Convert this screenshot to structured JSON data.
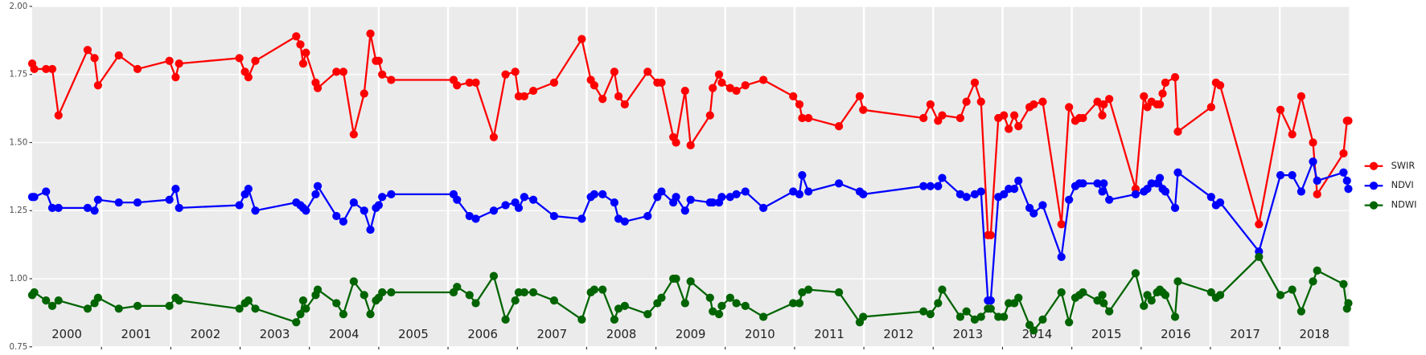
{
  "chart_data": {
    "type": "line",
    "x": [
      2000.0,
      2000.03,
      2000.2,
      2000.29,
      2000.38,
      2000.8,
      2000.9,
      2000.95,
      2001.25,
      2001.52,
      2001.98,
      2002.07,
      2002.12,
      2002.99,
      2003.07,
      2003.12,
      2003.22,
      2003.81,
      2003.87,
      2003.91,
      2003.95,
      2004.09,
      2004.12,
      2004.39,
      2004.49,
      2004.64,
      2004.79,
      2004.88,
      2004.96,
      2005.0,
      2005.05,
      2005.18,
      2006.08,
      2006.13,
      2006.31,
      2006.4,
      2006.66,
      2006.83,
      2006.97,
      2007.02,
      2007.1,
      2007.23,
      2007.53,
      2007.93,
      2008.06,
      2008.11,
      2008.23,
      2008.4,
      2008.46,
      2008.55,
      2008.88,
      2009.02,
      2009.08,
      2009.25,
      2009.29,
      2009.42,
      2009.5,
      2009.78,
      2009.82,
      2009.91,
      2009.95,
      2010.07,
      2010.16,
      2010.29,
      2010.55,
      2010.98,
      2011.07,
      2011.11,
      2011.2,
      2011.64,
      2011.94,
      2011.99,
      2012.86,
      2012.96,
      2013.07,
      2013.13,
      2013.39,
      2013.48,
      2013.6,
      2013.69,
      2013.79,
      2013.83,
      2013.94,
      2014.02,
      2014.09,
      2014.17,
      2014.23,
      2014.39,
      2014.45,
      2014.58,
      2014.85,
      2014.96,
      2015.05,
      2015.11,
      2015.16,
      2015.37,
      2015.44,
      2015.46,
      2015.54,
      2015.92,
      2016.04,
      2016.09,
      2016.15,
      2016.23,
      2016.27,
      2016.31,
      2016.35,
      2016.49,
      2016.53,
      2017.01,
      2017.08,
      2017.14,
      2017.7,
      2018.01,
      2018.18,
      2018.31,
      2018.48,
      2018.54,
      2018.92,
      2018.97,
      2018.99
    ],
    "series": [
      {
        "name": "SWIR",
        "color": "#ff0000",
        "values": [
          1.79,
          1.77,
          1.77,
          1.77,
          1.6,
          1.84,
          1.81,
          1.71,
          1.82,
          1.77,
          1.8,
          1.74,
          1.79,
          1.81,
          1.76,
          1.74,
          1.8,
          1.89,
          1.86,
          1.79,
          1.83,
          1.72,
          1.7,
          1.76,
          1.76,
          1.53,
          1.68,
          1.9,
          1.8,
          1.8,
          1.75,
          1.73,
          1.73,
          1.71,
          1.72,
          1.72,
          1.52,
          1.75,
          1.76,
          1.67,
          1.67,
          1.69,
          1.72,
          1.88,
          1.73,
          1.71,
          1.66,
          1.76,
          1.67,
          1.64,
          1.76,
          1.72,
          1.72,
          1.52,
          1.5,
          1.69,
          1.49,
          1.6,
          1.7,
          1.75,
          1.72,
          1.7,
          1.69,
          1.71,
          1.73,
          1.67,
          1.64,
          1.59,
          1.59,
          1.56,
          1.67,
          1.62,
          1.59,
          1.64,
          1.58,
          1.6,
          1.59,
          1.65,
          1.72,
          1.65,
          1.16,
          1.16,
          1.59,
          1.6,
          1.55,
          1.6,
          1.56,
          1.63,
          1.64,
          1.65,
          1.2,
          1.63,
          1.58,
          1.59,
          1.59,
          1.65,
          1.6,
          1.64,
          1.66,
          1.33,
          1.67,
          1.63,
          1.65,
          1.64,
          1.64,
          1.68,
          1.72,
          1.74,
          1.54,
          1.63,
          1.72,
          1.71,
          1.2,
          1.62,
          1.53,
          1.67,
          1.5,
          1.31,
          1.46,
          1.58,
          1.58
        ]
      },
      {
        "name": "NDVI",
        "color": "#0000ff",
        "values": [
          1.3,
          1.3,
          1.32,
          1.26,
          1.26,
          1.26,
          1.25,
          1.29,
          1.28,
          1.28,
          1.29,
          1.33,
          1.26,
          1.27,
          1.31,
          1.33,
          1.25,
          1.28,
          1.27,
          1.26,
          1.25,
          1.31,
          1.34,
          1.23,
          1.21,
          1.28,
          1.25,
          1.18,
          1.26,
          1.27,
          1.3,
          1.31,
          1.31,
          1.29,
          1.23,
          1.22,
          1.25,
          1.27,
          1.28,
          1.26,
          1.3,
          1.29,
          1.23,
          1.22,
          1.3,
          1.31,
          1.31,
          1.28,
          1.22,
          1.21,
          1.23,
          1.3,
          1.32,
          1.28,
          1.3,
          1.25,
          1.29,
          1.28,
          1.28,
          1.28,
          1.3,
          1.3,
          1.31,
          1.32,
          1.26,
          1.32,
          1.31,
          1.38,
          1.32,
          1.35,
          1.32,
          1.31,
          1.34,
          1.34,
          1.34,
          1.37,
          1.31,
          1.3,
          1.31,
          1.32,
          0.92,
          0.92,
          1.3,
          1.31,
          1.33,
          1.33,
          1.36,
          1.26,
          1.24,
          1.27,
          1.08,
          1.29,
          1.34,
          1.35,
          1.35,
          1.35,
          1.32,
          1.35,
          1.29,
          1.31,
          1.32,
          1.33,
          1.35,
          1.35,
          1.37,
          1.33,
          1.32,
          1.26,
          1.39,
          1.3,
          1.27,
          1.28,
          1.1,
          1.38,
          1.38,
          1.32,
          1.43,
          1.36,
          1.39,
          1.36,
          1.33
        ]
      },
      {
        "name": "NDWI",
        "color": "#006400",
        "values": [
          0.94,
          0.95,
          0.92,
          0.9,
          0.92,
          0.89,
          0.91,
          0.93,
          0.89,
          0.9,
          0.9,
          0.93,
          0.92,
          0.89,
          0.91,
          0.92,
          0.89,
          0.84,
          0.87,
          0.92,
          0.89,
          0.94,
          0.96,
          0.91,
          0.87,
          0.99,
          0.94,
          0.87,
          0.92,
          0.93,
          0.95,
          0.95,
          0.95,
          0.97,
          0.94,
          0.91,
          1.01,
          0.85,
          0.92,
          0.95,
          0.95,
          0.95,
          0.92,
          0.85,
          0.95,
          0.96,
          0.96,
          0.85,
          0.89,
          0.9,
          0.87,
          0.91,
          0.93,
          1.0,
          1.0,
          0.91,
          0.99,
          0.93,
          0.88,
          0.87,
          0.9,
          0.93,
          0.91,
          0.9,
          0.86,
          0.91,
          0.91,
          0.95,
          0.96,
          0.95,
          0.84,
          0.86,
          0.88,
          0.87,
          0.91,
          0.96,
          0.86,
          0.88,
          0.85,
          0.86,
          0.89,
          0.89,
          0.86,
          0.86,
          0.91,
          0.91,
          0.93,
          0.83,
          0.81,
          0.85,
          0.95,
          0.84,
          0.93,
          0.94,
          0.95,
          0.92,
          0.94,
          0.91,
          0.88,
          1.02,
          0.9,
          0.94,
          0.92,
          0.95,
          0.96,
          0.95,
          0.94,
          0.86,
          0.99,
          0.95,
          0.93,
          0.94,
          1.08,
          0.94,
          0.96,
          0.88,
          0.99,
          1.03,
          0.98,
          0.89,
          0.91
        ]
      }
    ],
    "xlim": [
      2000,
      2019
    ],
    "xticks": [
      {
        "value": 2000.5,
        "label": "2000"
      },
      {
        "value": 2001.5,
        "label": "2001"
      },
      {
        "value": 2002.5,
        "label": "2002"
      },
      {
        "value": 2003.5,
        "label": "2003"
      },
      {
        "value": 2004.5,
        "label": "2004"
      },
      {
        "value": 2005.5,
        "label": "2005"
      },
      {
        "value": 2006.5,
        "label": "2006"
      },
      {
        "value": 2007.5,
        "label": "2007"
      },
      {
        "value": 2008.5,
        "label": "2008"
      },
      {
        "value": 2009.5,
        "label": "2009"
      },
      {
        "value": 2010.5,
        "label": "2010"
      },
      {
        "value": 2011.5,
        "label": "2011"
      },
      {
        "value": 2012.5,
        "label": "2012"
      },
      {
        "value": 2013.5,
        "label": "2013"
      },
      {
        "value": 2014.5,
        "label": "2014"
      },
      {
        "value": 2015.5,
        "label": "2015"
      },
      {
        "value": 2016.5,
        "label": "2016"
      },
      {
        "value": 2017.5,
        "label": "2017"
      },
      {
        "value": 2018.5,
        "label": "2018"
      }
    ],
    "xgrid": [
      2001,
      2002,
      2003,
      2004,
      2005,
      2006,
      2007,
      2008,
      2009,
      2010,
      2011,
      2012,
      2013,
      2014,
      2015,
      2016,
      2017,
      2018
    ],
    "ylim": [
      0.75,
      2.0
    ],
    "yticks": [
      {
        "value": 0.75,
        "label": "0.75"
      },
      {
        "value": 1.0,
        "label": "1.00"
      },
      {
        "value": 1.25,
        "label": "1.25"
      },
      {
        "value": 1.5,
        "label": "1.50"
      },
      {
        "value": 1.75,
        "label": "1.75"
      },
      {
        "value": 2.0,
        "label": "2.00"
      }
    ],
    "grid": true,
    "legend": "right"
  }
}
